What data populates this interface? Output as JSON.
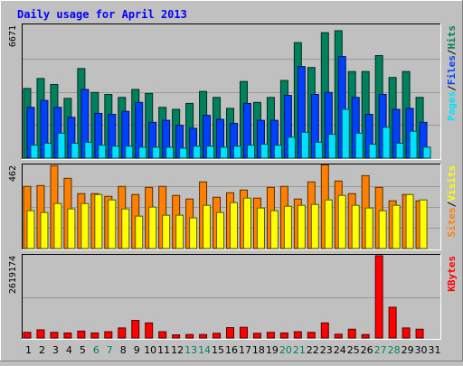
{
  "title": "Daily usage for April 2013",
  "colors": {
    "background": "#c0c0c0",
    "title": "#0000ff",
    "hits": "#00805c",
    "files": "#0040ff",
    "pages": "#00e0ff",
    "visits": "#ffff00",
    "sites": "#ff8000",
    "kbytes": "#ff0000",
    "weekday": "#000000",
    "weekend": "#00805c"
  },
  "chart_data": [
    {
      "type": "bar",
      "panel": "hits-files-pages",
      "max_label": "6671",
      "ylim": [
        0,
        6671
      ],
      "legend": [
        "Pages",
        "Files",
        "Hits"
      ],
      "categories": [
        "1",
        "2",
        "3",
        "4",
        "5",
        "6",
        "7",
        "8",
        "9",
        "10",
        "11",
        "12",
        "13",
        "14",
        "15",
        "16",
        "17",
        "18",
        "19",
        "20",
        "21",
        "22",
        "23",
        "24",
        "25",
        "26",
        "27",
        "28",
        "29",
        "30",
        "31"
      ],
      "series": [
        {
          "name": "Hits",
          "values": [
            3500,
            4000,
            3700,
            3000,
            4500,
            3300,
            3200,
            3050,
            3450,
            3250,
            2550,
            2450,
            2750,
            3350,
            3050,
            2500,
            3850,
            2800,
            3050,
            3900,
            5800,
            4550,
            6300,
            6400,
            4350,
            4350,
            5150,
            4050,
            4350,
            3050,
            0
          ]
        },
        {
          "name": "Files",
          "values": [
            2550,
            2900,
            2550,
            2050,
            3450,
            2250,
            2200,
            2350,
            2800,
            1800,
            1900,
            1650,
            1500,
            2150,
            1950,
            1750,
            2750,
            1900,
            1900,
            3150,
            4600,
            3200,
            3300,
            5100,
            3050,
            2200,
            3200,
            2450,
            2500,
            1800,
            0
          ]
        },
        {
          "name": "Pages",
          "values": [
            650,
            750,
            1250,
            750,
            800,
            650,
            600,
            600,
            550,
            550,
            550,
            500,
            600,
            600,
            550,
            600,
            650,
            700,
            650,
            1050,
            1300,
            800,
            1200,
            2450,
            1250,
            700,
            1550,
            750,
            1350,
            550,
            0
          ]
        }
      ]
    },
    {
      "type": "bar",
      "panel": "visits-sites",
      "max_label": "462",
      "ylim": [
        0,
        462
      ],
      "legend": [
        "Sites",
        "Visits"
      ],
      "categories": [
        "1",
        "2",
        "3",
        "4",
        "5",
        "6",
        "7",
        "8",
        "9",
        "10",
        "11",
        "12",
        "13",
        "14",
        "15",
        "16",
        "17",
        "18",
        "19",
        "20",
        "21",
        "22",
        "23",
        "24",
        "25",
        "26",
        "27",
        "28",
        "29",
        "30",
        "31"
      ],
      "series": [
        {
          "name": "Sites",
          "values": [
            345,
            350,
            460,
            390,
            305,
            305,
            290,
            345,
            300,
            340,
            345,
            295,
            275,
            370,
            285,
            310,
            325,
            280,
            340,
            345,
            275,
            370,
            465,
            375,
            305,
            405,
            340,
            265,
            300,
            265,
            0
          ]
        },
        {
          "name": "Visits",
          "values": [
            210,
            200,
            250,
            220,
            250,
            300,
            270,
            220,
            180,
            230,
            185,
            185,
            170,
            240,
            200,
            255,
            280,
            225,
            210,
            235,
            240,
            245,
            270,
            295,
            240,
            225,
            210,
            240,
            300,
            270,
            0
          ]
        }
      ]
    },
    {
      "type": "bar",
      "panel": "kbytes",
      "max_label": "2619174",
      "ylim": [
        0,
        2619174
      ],
      "legend": [
        "KBytes"
      ],
      "categories": [
        "1",
        "2",
        "3",
        "4",
        "5",
        "6",
        "7",
        "8",
        "9",
        "10",
        "11",
        "12",
        "13",
        "14",
        "15",
        "16",
        "17",
        "18",
        "19",
        "20",
        "21",
        "22",
        "23",
        "24",
        "25",
        "26",
        "27",
        "28",
        "29",
        "30",
        "31"
      ],
      "series": [
        {
          "name": "KBytes",
          "values": [
            180000,
            260000,
            180000,
            160000,
            220000,
            160000,
            200000,
            320000,
            560000,
            480000,
            200000,
            100000,
            110000,
            110000,
            150000,
            330000,
            340000,
            150000,
            180000,
            160000,
            200000,
            180000,
            480000,
            120000,
            280000,
            110000,
            2620000,
            980000,
            320000,
            280000,
            0
          ]
        }
      ]
    }
  ]
}
